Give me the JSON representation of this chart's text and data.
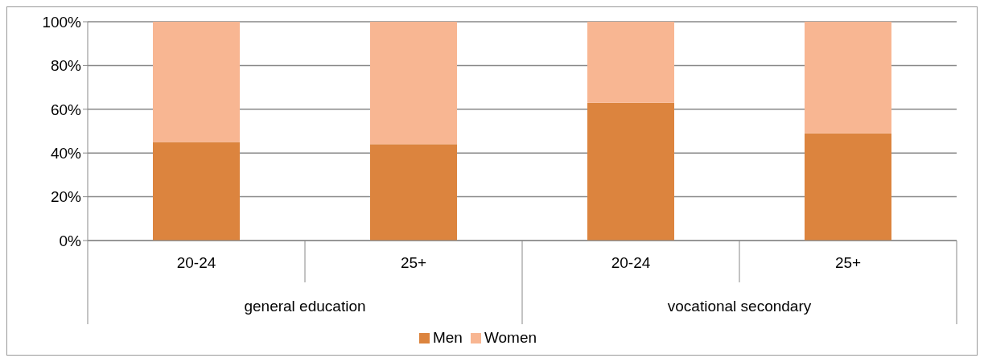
{
  "chart_data": {
    "type": "bar",
    "stacked": true,
    "categories": [
      "20-24",
      "25+",
      "20-24",
      "25+"
    ],
    "series": [
      {
        "name": "Men",
        "color": "#dc843e",
        "values": [
          45,
          44,
          63,
          49
        ]
      },
      {
        "name": "Women",
        "color": "#f8b692",
        "values": [
          55,
          56,
          37,
          51
        ]
      }
    ],
    "ylim": [
      0,
      100
    ],
    "yticks": [
      {
        "value": 0,
        "label": "0%"
      },
      {
        "value": 20,
        "label": "20%"
      },
      {
        "value": 40,
        "label": "40%"
      },
      {
        "value": 60,
        "label": "60%"
      },
      {
        "value": 80,
        "label": "80%"
      },
      {
        "value": 100,
        "label": "100%"
      }
    ],
    "grid": "y",
    "legend": "bottom",
    "annotations": [
      "general education",
      "vocational secondary"
    ]
  }
}
